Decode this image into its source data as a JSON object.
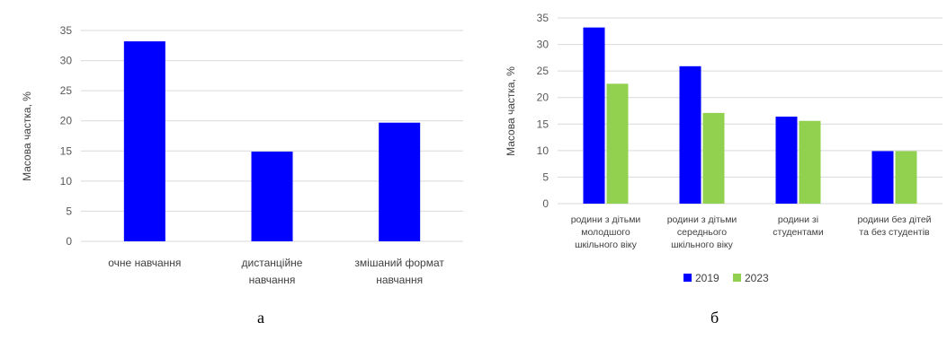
{
  "chart_data": [
    {
      "type": "bar",
      "categories": [
        [
          "очне навчання"
        ],
        [
          "дистанційне",
          "навчання"
        ],
        [
          "змішаний формат",
          "навчання"
        ]
      ],
      "values": [
        33.2,
        14.9,
        19.7
      ],
      "ylabel": "Масова частка, %",
      "ylim": [
        0,
        35
      ],
      "yticks": [
        0,
        5,
        10,
        15,
        20,
        25,
        30,
        35
      ],
      "grid": true,
      "bar_color": "#0000FF"
    },
    {
      "type": "bar",
      "categories": [
        [
          "родини з дітьми",
          "молодшого",
          "шкільного віку"
        ],
        [
          "родини з дітьми",
          "середнього",
          "шкільного віку"
        ],
        [
          "родини зі",
          "студентами"
        ],
        [
          "родини без дітей",
          "та без студентів"
        ]
      ],
      "series": [
        {
          "name": "2019",
          "values": [
            33.2,
            25.9,
            16.4,
            9.9
          ],
          "color": "#0000FF"
        },
        {
          "name": "2023",
          "values": [
            22.6,
            17.1,
            15.6,
            9.9
          ],
          "color": "#92D050"
        }
      ],
      "ylabel": "Масова частка, %",
      "ylim": [
        0,
        35
      ],
      "yticks": [
        0,
        5,
        10,
        15,
        20,
        25,
        30,
        35
      ],
      "grid": true,
      "legend": "bottom"
    }
  ],
  "panel_labels": [
    "а",
    "б"
  ]
}
